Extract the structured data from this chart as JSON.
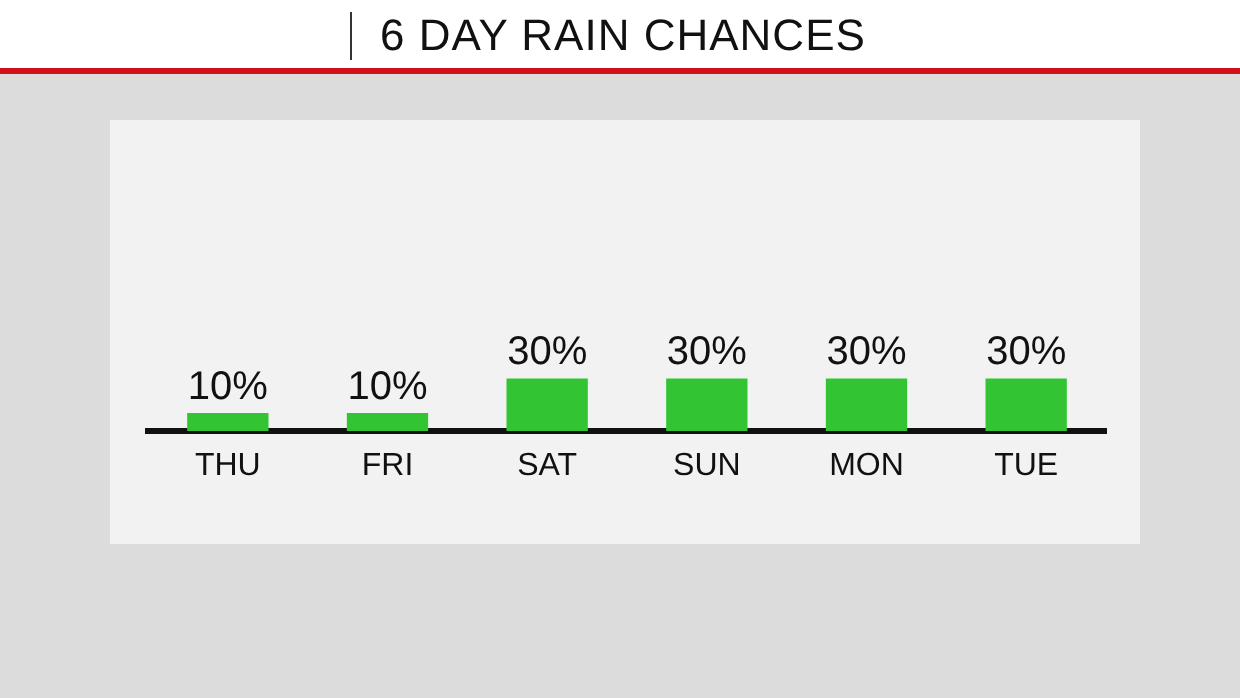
{
  "chart_data": {
    "type": "bar",
    "title": "6 DAY RAIN CHANCES",
    "categories": [
      "THU",
      "FRI",
      "SAT",
      "SUN",
      "MON",
      "TUE"
    ],
    "values": [
      10,
      10,
      30,
      30,
      30,
      30
    ],
    "value_labels": [
      "10%",
      "10%",
      "30%",
      "30%",
      "30%",
      "30%"
    ],
    "color": "#33c433",
    "tick_labels": "x",
    "grid": false,
    "legend": false
  }
}
